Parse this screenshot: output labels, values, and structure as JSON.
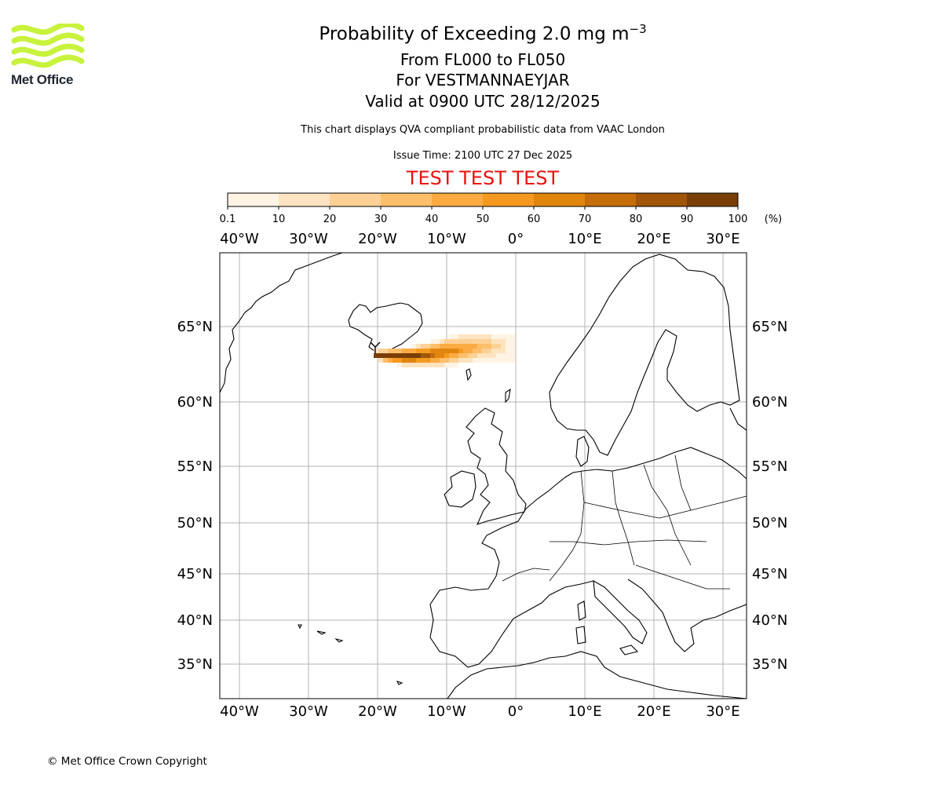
{
  "logo": {
    "text": "Met Office",
    "brand_color": "#c8f23c"
  },
  "header": {
    "title_main": "Probability of Exceeding 2.0 mg m",
    "title_exp": "−3",
    "range": "From FL000 to FL050",
    "location": "For VESTMANNAEYJAR",
    "valid": "Valid at 0900 UTC 28/12/2025",
    "description": "This chart displays QVA compliant probabilistic data from VAAC London",
    "issue": "Issue Time: 2100 UTC 27 Dec 2025",
    "test_banner": "TEST TEST TEST"
  },
  "colorbar": {
    "ticks": [
      "0.1",
      "10",
      "20",
      "30",
      "40",
      "50",
      "60",
      "70",
      "80",
      "90",
      "100"
    ],
    "unit": "(%)",
    "colors": [
      "#fff4e3",
      "#fde3c0",
      "#fdd196",
      "#fdbf6a",
      "#fcab43",
      "#f59a20",
      "#e0850e",
      "#c46d0a",
      "#a05508",
      "#7a3f06"
    ]
  },
  "map": {
    "lon_labels": [
      "40°W",
      "30°W",
      "20°W",
      "10°W",
      "0°",
      "10°E",
      "20°E",
      "30°E"
    ],
    "lat_labels": [
      "65°N",
      "60°N",
      "55°N",
      "50°N",
      "45°N",
      "40°N",
      "35°N"
    ],
    "ash_cloud": {
      "source": "Vestmannaeyjar",
      "max_probability_pct": 100
    }
  },
  "footer": {
    "copyright": "© Met Office Crown Copyright"
  }
}
